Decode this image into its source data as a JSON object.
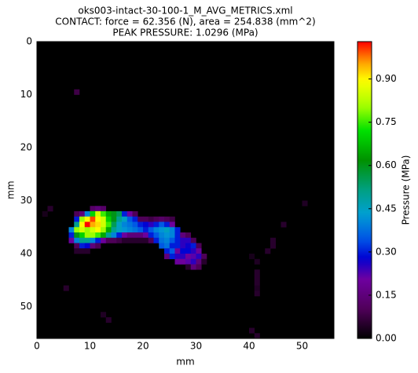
{
  "chart_data": {
    "type": "heatmap",
    "title": [
      "oks003-intact-30-100-1_M_AVG_METRICS.xml",
      "CONTACT: force = 62.356 (N), area = 254.838 (mm^2)",
      "PEAK PRESSURE: 1.0296 (MPa)"
    ],
    "x_label": "mm",
    "y_label": "mm",
    "colorbar_label": "Pressure (MPa)",
    "colormap": "spectral",
    "xlim": [
      0,
      56
    ],
    "ylim": [
      56,
      0
    ],
    "xticks": [
      0,
      10,
      20,
      30,
      40,
      50
    ],
    "yticks": [
      0,
      10,
      20,
      30,
      40,
      50
    ],
    "clim": [
      0,
      1.0296
    ],
    "cticks": [
      {
        "value": 0,
        "label": "0.00"
      },
      {
        "value": 0.15,
        "label": "0.15"
      },
      {
        "value": 0.3,
        "label": "0.30"
      },
      {
        "value": 0.45,
        "label": "0.45"
      },
      {
        "value": 0.6,
        "label": "0.60"
      },
      {
        "value": 0.75,
        "label": "0.75"
      },
      {
        "value": 0.9,
        "label": "0.90"
      }
    ],
    "cells": [
      [
        7,
        9,
        0.08
      ],
      [
        2,
        31,
        0.05
      ],
      [
        10,
        31,
        0.12
      ],
      [
        11,
        31,
        0.15
      ],
      [
        12,
        31,
        0.12
      ],
      [
        1,
        32,
        0.03
      ],
      [
        7,
        32,
        0.1
      ],
      [
        8,
        32,
        0.15
      ],
      [
        9,
        32,
        0.4
      ],
      [
        10,
        32,
        0.7
      ],
      [
        11,
        32,
        0.85
      ],
      [
        12,
        32,
        0.75
      ],
      [
        13,
        32,
        0.65
      ],
      [
        14,
        32,
        0.6
      ],
      [
        15,
        32,
        0.55
      ],
      [
        16,
        32,
        0.3
      ],
      [
        17,
        32,
        0.2
      ],
      [
        18,
        32,
        0.1
      ],
      [
        7,
        33,
        0.3
      ],
      [
        8,
        33,
        0.8
      ],
      [
        9,
        33,
        0.9
      ],
      [
        10,
        33,
        1.0
      ],
      [
        11,
        33,
        0.9
      ],
      [
        12,
        33,
        0.85
      ],
      [
        13,
        33,
        0.7
      ],
      [
        14,
        33,
        0.6
      ],
      [
        15,
        33,
        0.5
      ],
      [
        16,
        33,
        0.45
      ],
      [
        17,
        33,
        0.35
      ],
      [
        18,
        33,
        0.3
      ],
      [
        19,
        33,
        0.1
      ],
      [
        20,
        33,
        0.1
      ],
      [
        21,
        33,
        0.08
      ],
      [
        22,
        33,
        0.1
      ],
      [
        23,
        33,
        0.12
      ],
      [
        24,
        33,
        0.1
      ],
      [
        25,
        33,
        0.08
      ],
      [
        7,
        34,
        0.5
      ],
      [
        8,
        34,
        0.9
      ],
      [
        9,
        34,
        1.0296
      ],
      [
        10,
        34,
        0.95
      ],
      [
        11,
        34,
        0.92
      ],
      [
        12,
        34,
        0.85
      ],
      [
        13,
        34,
        0.75
      ],
      [
        14,
        34,
        0.55
      ],
      [
        15,
        34,
        0.45
      ],
      [
        16,
        34,
        0.4
      ],
      [
        17,
        34,
        0.38
      ],
      [
        18,
        34,
        0.35
      ],
      [
        19,
        34,
        0.3
      ],
      [
        20,
        34,
        0.28
      ],
      [
        21,
        34,
        0.25
      ],
      [
        22,
        34,
        0.3
      ],
      [
        23,
        34,
        0.35
      ],
      [
        24,
        34,
        0.3
      ],
      [
        25,
        34,
        0.2
      ],
      [
        46,
        34,
        0.05
      ],
      [
        6,
        35,
        0.4
      ],
      [
        7,
        35,
        0.8
      ],
      [
        8,
        35,
        0.85
      ],
      [
        9,
        35,
        0.8
      ],
      [
        10,
        35,
        0.85
      ],
      [
        11,
        35,
        0.9
      ],
      [
        12,
        35,
        0.8
      ],
      [
        13,
        35,
        0.65
      ],
      [
        14,
        35,
        0.5
      ],
      [
        15,
        35,
        0.45
      ],
      [
        16,
        35,
        0.42
      ],
      [
        17,
        35,
        0.4
      ],
      [
        18,
        35,
        0.38
      ],
      [
        19,
        35,
        0.35
      ],
      [
        20,
        35,
        0.3
      ],
      [
        21,
        35,
        0.35
      ],
      [
        22,
        35,
        0.4
      ],
      [
        23,
        35,
        0.42
      ],
      [
        24,
        35,
        0.45
      ],
      [
        25,
        35,
        0.4
      ],
      [
        26,
        35,
        0.3
      ],
      [
        6,
        36,
        0.3
      ],
      [
        7,
        36,
        0.6
      ],
      [
        8,
        36,
        0.7
      ],
      [
        9,
        36,
        0.8
      ],
      [
        10,
        36,
        0.8
      ],
      [
        11,
        36,
        0.75
      ],
      [
        12,
        36,
        0.65
      ],
      [
        13,
        36,
        0.5
      ],
      [
        14,
        36,
        0.4
      ],
      [
        15,
        36,
        0.3
      ],
      [
        16,
        36,
        0.2
      ],
      [
        17,
        36,
        0.15
      ],
      [
        18,
        36,
        0.15
      ],
      [
        19,
        36,
        0.15
      ],
      [
        20,
        36,
        0.2
      ],
      [
        21,
        36,
        0.3
      ],
      [
        22,
        36,
        0.35
      ],
      [
        23,
        36,
        0.4
      ],
      [
        24,
        36,
        0.42
      ],
      [
        25,
        36,
        0.4
      ],
      [
        26,
        36,
        0.3
      ],
      [
        27,
        36,
        0.15
      ],
      [
        28,
        36,
        0.1
      ],
      [
        6,
        37,
        0.2
      ],
      [
        7,
        37,
        0.4
      ],
      [
        8,
        37,
        0.5
      ],
      [
        9,
        37,
        0.5
      ],
      [
        10,
        37,
        0.4
      ],
      [
        11,
        37,
        0.3
      ],
      [
        12,
        37,
        0.2
      ],
      [
        13,
        37,
        0.1
      ],
      [
        14,
        37,
        0.1
      ],
      [
        15,
        37,
        0.08
      ],
      [
        16,
        37,
        0.05
      ],
      [
        17,
        37,
        0.05
      ],
      [
        18,
        37,
        0.05
      ],
      [
        19,
        37,
        0.05
      ],
      [
        20,
        37,
        0.05
      ],
      [
        21,
        37,
        0.1
      ],
      [
        22,
        37,
        0.3
      ],
      [
        23,
        37,
        0.38
      ],
      [
        24,
        37,
        0.4
      ],
      [
        25,
        37,
        0.35
      ],
      [
        26,
        37,
        0.3
      ],
      [
        27,
        37,
        0.25
      ],
      [
        28,
        37,
        0.25
      ],
      [
        29,
        37,
        0.1
      ],
      [
        44,
        37,
        0.05
      ],
      [
        7,
        38,
        0.1
      ],
      [
        8,
        38,
        0.3
      ],
      [
        9,
        38,
        0.28
      ],
      [
        10,
        38,
        0.15
      ],
      [
        11,
        38,
        0.1
      ],
      [
        23,
        38,
        0.35
      ],
      [
        24,
        38,
        0.38
      ],
      [
        25,
        38,
        0.3
      ],
      [
        26,
        38,
        0.3
      ],
      [
        27,
        38,
        0.25
      ],
      [
        28,
        38,
        0.27
      ],
      [
        29,
        38,
        0.3
      ],
      [
        30,
        38,
        0.1
      ],
      [
        44,
        38,
        0.05
      ],
      [
        7,
        39,
        0.05
      ],
      [
        8,
        39,
        0.05
      ],
      [
        9,
        39,
        0.05
      ],
      [
        24,
        39,
        0.3
      ],
      [
        25,
        39,
        0.35
      ],
      [
        26,
        39,
        0.2
      ],
      [
        27,
        39,
        0.28
      ],
      [
        28,
        39,
        0.28
      ],
      [
        29,
        39,
        0.25
      ],
      [
        30,
        39,
        0.2
      ],
      [
        43,
        39,
        0.05
      ],
      [
        24,
        40,
        0.15
      ],
      [
        25,
        40,
        0.3
      ],
      [
        26,
        40,
        0.25
      ],
      [
        27,
        40,
        0.25
      ],
      [
        28,
        40,
        0.2
      ],
      [
        29,
        40,
        0.22
      ],
      [
        30,
        40,
        0.25
      ],
      [
        31,
        40,
        0.1
      ],
      [
        40,
        40,
        0.03
      ],
      [
        26,
        41,
        0.2
      ],
      [
        27,
        41,
        0.2
      ],
      [
        28,
        41,
        0.22
      ],
      [
        29,
        41,
        0.25
      ],
      [
        30,
        41,
        0.15
      ],
      [
        31,
        41,
        0.05
      ],
      [
        41,
        41,
        0.04
      ],
      [
        28,
        42,
        0.05
      ],
      [
        29,
        42,
        0.15
      ],
      [
        30,
        42,
        0.1
      ],
      [
        50,
        30,
        0.04
      ],
      [
        41,
        43,
        0.05
      ],
      [
        41,
        44,
        0.05
      ],
      [
        41,
        45,
        0.05
      ],
      [
        41,
        46,
        0.04
      ],
      [
        41,
        47,
        0.05
      ],
      [
        5,
        46,
        0.05
      ],
      [
        12,
        51,
        0.04
      ],
      [
        13,
        52,
        0.05
      ],
      [
        40,
        54,
        0.05
      ],
      [
        41,
        55,
        0.05
      ]
    ]
  }
}
